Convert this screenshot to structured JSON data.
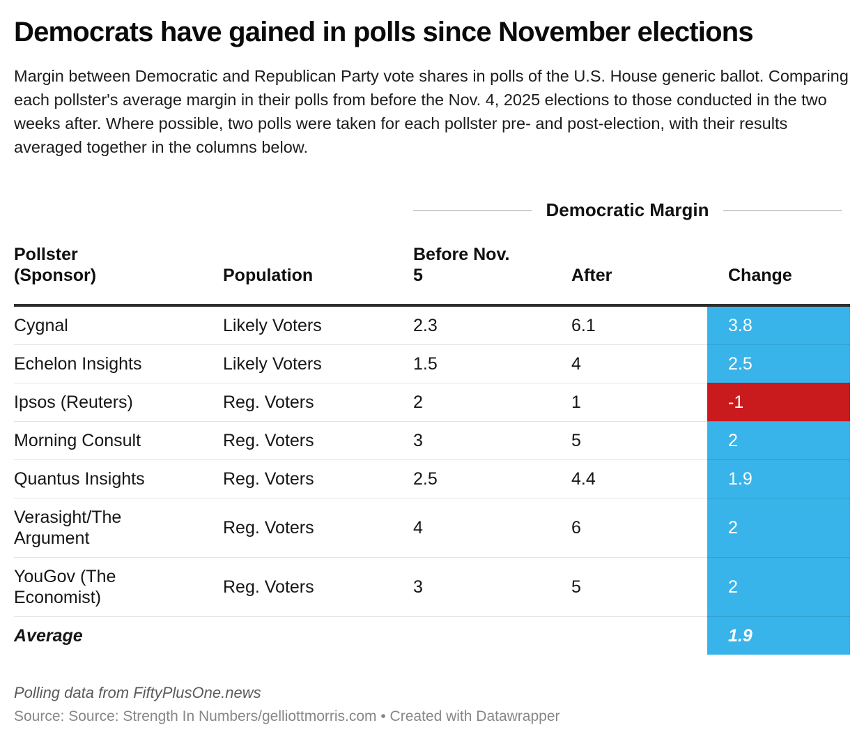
{
  "header": {
    "title": "Democrats have gained in polls since November elections",
    "description": "Margin between Democratic and Republican Party vote shares in polls of the U.S. House generic ballot. Comparing each pollster's average margin in their polls from before the Nov. 4, 2025 elections to those conducted in the two weeks after. Where possible, two polls were taken for each pollster pre- and post-election, with their results averaged together in the columns below."
  },
  "chart_data": {
    "type": "table",
    "title": "Democrats have gained in polls since November elections",
    "span_header": "Democratic Margin",
    "columns": {
      "pollster": "Pollster (Sponsor)",
      "population": "Population",
      "before": "Before Nov. 5",
      "after": "After",
      "change": "Change"
    },
    "rows": [
      {
        "pollster": "Cygnal",
        "population": "Likely Voters",
        "before": 2.3,
        "after": 6.1,
        "change": 3.8
      },
      {
        "pollster": "Echelon Insights",
        "population": "Likely Voters",
        "before": 1.5,
        "after": 4,
        "change": 2.5
      },
      {
        "pollster": "Ipsos (Reuters)",
        "population": "Reg. Voters",
        "before": 2,
        "after": 1,
        "change": -1
      },
      {
        "pollster": "Morning Consult",
        "population": "Reg. Voters",
        "before": 3,
        "after": 5,
        "change": 2
      },
      {
        "pollster": "Quantus Insights",
        "population": "Reg. Voters",
        "before": 2.5,
        "after": 4.4,
        "change": 1.9
      },
      {
        "pollster": "Verasight/The Argument",
        "population": "Reg. Voters",
        "before": 4,
        "after": 6,
        "change": 2
      },
      {
        "pollster": "YouGov (The Economist)",
        "population": "Reg. Voters",
        "before": 3,
        "after": 5,
        "change": 2
      },
      {
        "pollster": "Average",
        "population": "",
        "before": "",
        "after": "",
        "change": 1.9
      }
    ]
  },
  "colors": {
    "positive_change": "#38b4ea",
    "negative_change": "#c91b1d",
    "header_rule": "#2e2e2e"
  },
  "footer": {
    "footnote": "Polling data from FiftyPlusOne.news",
    "source": "Source: Source: Strength In Numbers/gelliottmorris.com • Created with Datawrapper"
  }
}
